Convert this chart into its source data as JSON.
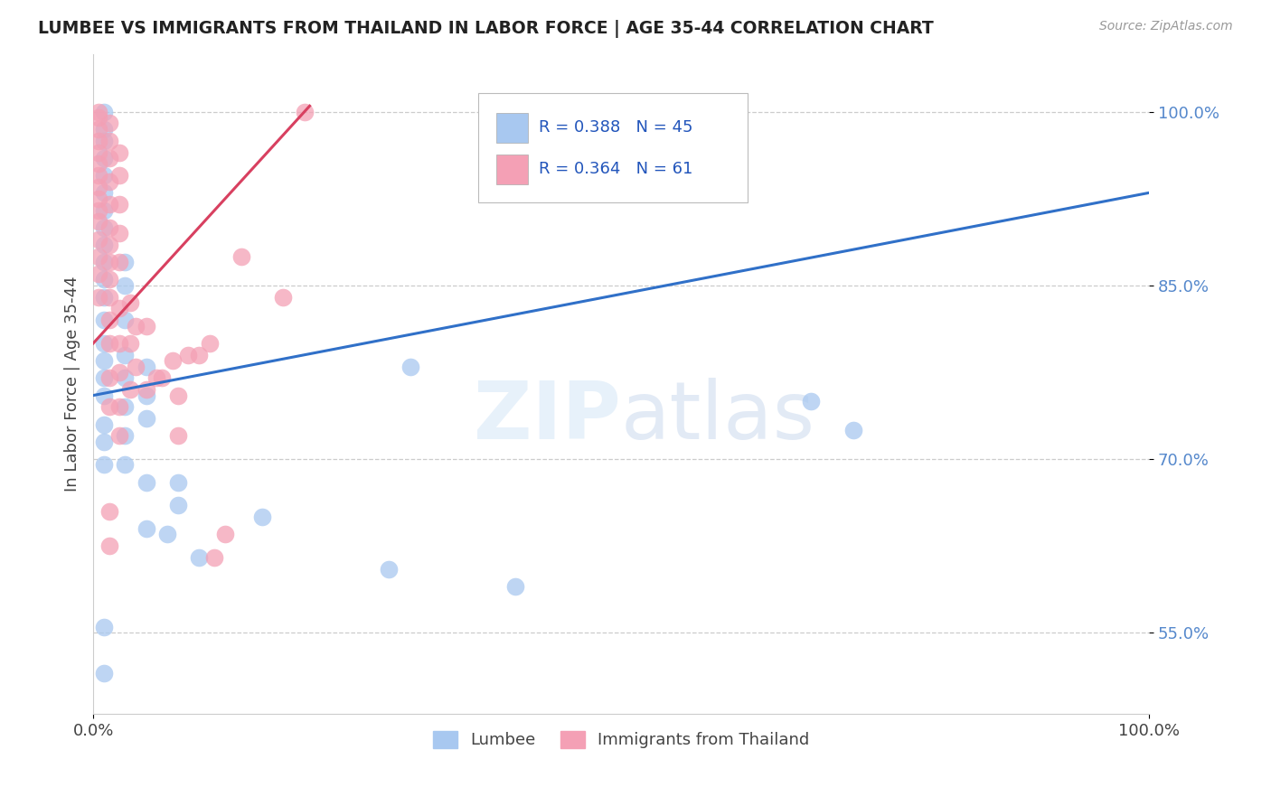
{
  "title": "LUMBEE VS IMMIGRANTS FROM THAILAND IN LABOR FORCE | AGE 35-44 CORRELATION CHART",
  "source": "Source: ZipAtlas.com",
  "ylabel": "In Labor Force | Age 35-44",
  "xlim": [
    0.0,
    1.0
  ],
  "ylim": [
    0.48,
    1.05
  ],
  "yticks": [
    0.55,
    0.7,
    0.85,
    1.0
  ],
  "ytick_labels": [
    "55.0%",
    "70.0%",
    "85.0%",
    "100.0%"
  ],
  "xticks": [
    0.0,
    1.0
  ],
  "xtick_labels": [
    "0.0%",
    "100.0%"
  ],
  "legend_labels": [
    "Lumbee",
    "Immigrants from Thailand"
  ],
  "R_blue": 0.388,
  "N_blue": 45,
  "R_pink": 0.364,
  "N_pink": 61,
  "blue_color": "#A8C8F0",
  "pink_color": "#F4A0B5",
  "blue_line_color": "#3070C8",
  "pink_line_color": "#D84060",
  "watermark": "ZIPatlas",
  "blue_points": [
    [
      0.01,
      0.515
    ],
    [
      0.01,
      0.555
    ],
    [
      0.01,
      0.695
    ],
    [
      0.01,
      0.715
    ],
    [
      0.01,
      0.73
    ],
    [
      0.01,
      0.755
    ],
    [
      0.01,
      0.77
    ],
    [
      0.01,
      0.785
    ],
    [
      0.01,
      0.8
    ],
    [
      0.01,
      0.82
    ],
    [
      0.01,
      0.84
    ],
    [
      0.01,
      0.855
    ],
    [
      0.01,
      0.87
    ],
    [
      0.01,
      0.885
    ],
    [
      0.01,
      0.9
    ],
    [
      0.01,
      0.915
    ],
    [
      0.01,
      0.93
    ],
    [
      0.01,
      0.945
    ],
    [
      0.01,
      0.96
    ],
    [
      0.01,
      0.975
    ],
    [
      0.01,
      0.985
    ],
    [
      0.01,
      1.0
    ],
    [
      0.03,
      0.695
    ],
    [
      0.03,
      0.72
    ],
    [
      0.03,
      0.745
    ],
    [
      0.03,
      0.77
    ],
    [
      0.03,
      0.79
    ],
    [
      0.03,
      0.82
    ],
    [
      0.03,
      0.85
    ],
    [
      0.03,
      0.87
    ],
    [
      0.05,
      0.64
    ],
    [
      0.05,
      0.68
    ],
    [
      0.05,
      0.735
    ],
    [
      0.05,
      0.755
    ],
    [
      0.05,
      0.78
    ],
    [
      0.07,
      0.635
    ],
    [
      0.08,
      0.66
    ],
    [
      0.08,
      0.68
    ],
    [
      0.1,
      0.615
    ],
    [
      0.16,
      0.65
    ],
    [
      0.28,
      0.605
    ],
    [
      0.3,
      0.78
    ],
    [
      0.4,
      0.59
    ],
    [
      0.68,
      0.75
    ],
    [
      0.72,
      0.725
    ]
  ],
  "pink_points": [
    [
      0.005,
      0.84
    ],
    [
      0.005,
      0.86
    ],
    [
      0.005,
      0.875
    ],
    [
      0.005,
      0.89
    ],
    [
      0.005,
      0.905
    ],
    [
      0.005,
      0.915
    ],
    [
      0.005,
      0.925
    ],
    [
      0.005,
      0.935
    ],
    [
      0.005,
      0.945
    ],
    [
      0.005,
      0.955
    ],
    [
      0.005,
      0.965
    ],
    [
      0.005,
      0.975
    ],
    [
      0.005,
      0.985
    ],
    [
      0.005,
      0.995
    ],
    [
      0.005,
      1.0
    ],
    [
      0.015,
      0.625
    ],
    [
      0.015,
      0.655
    ],
    [
      0.015,
      0.745
    ],
    [
      0.015,
      0.77
    ],
    [
      0.015,
      0.8
    ],
    [
      0.015,
      0.82
    ],
    [
      0.015,
      0.84
    ],
    [
      0.015,
      0.855
    ],
    [
      0.015,
      0.87
    ],
    [
      0.015,
      0.885
    ],
    [
      0.015,
      0.9
    ],
    [
      0.015,
      0.92
    ],
    [
      0.015,
      0.94
    ],
    [
      0.015,
      0.96
    ],
    [
      0.015,
      0.975
    ],
    [
      0.015,
      0.99
    ],
    [
      0.025,
      0.72
    ],
    [
      0.025,
      0.745
    ],
    [
      0.025,
      0.775
    ],
    [
      0.025,
      0.8
    ],
    [
      0.025,
      0.83
    ],
    [
      0.025,
      0.87
    ],
    [
      0.025,
      0.895
    ],
    [
      0.025,
      0.92
    ],
    [
      0.025,
      0.945
    ],
    [
      0.025,
      0.965
    ],
    [
      0.035,
      0.76
    ],
    [
      0.035,
      0.8
    ],
    [
      0.035,
      0.835
    ],
    [
      0.04,
      0.78
    ],
    [
      0.04,
      0.815
    ],
    [
      0.05,
      0.76
    ],
    [
      0.05,
      0.815
    ],
    [
      0.06,
      0.77
    ],
    [
      0.065,
      0.77
    ],
    [
      0.075,
      0.785
    ],
    [
      0.08,
      0.72
    ],
    [
      0.08,
      0.755
    ],
    [
      0.09,
      0.79
    ],
    [
      0.1,
      0.79
    ],
    [
      0.11,
      0.8
    ],
    [
      0.115,
      0.615
    ],
    [
      0.125,
      0.635
    ],
    [
      0.14,
      0.875
    ],
    [
      0.18,
      0.84
    ],
    [
      0.2,
      1.0
    ]
  ],
  "blue_trendline_x": [
    0.0,
    1.0
  ],
  "blue_trendline_y": [
    0.755,
    0.93
  ],
  "pink_trendline_x": [
    0.0,
    0.205
  ],
  "pink_trendline_y": [
    0.8,
    1.005
  ]
}
